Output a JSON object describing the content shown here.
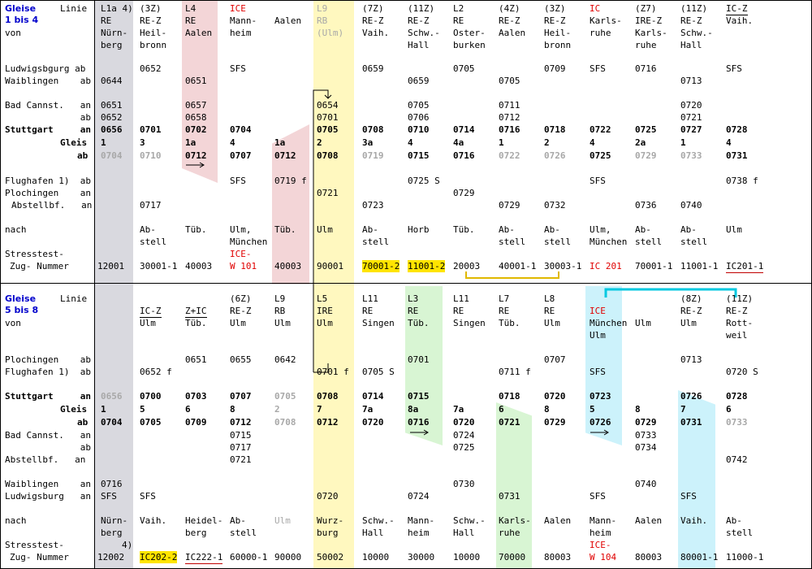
{
  "colors": {
    "gray": "#d9d9df",
    "pink": "#f3d5d7",
    "yellow": "#fff8bf",
    "green": "#d8f5d3",
    "cyan": "#ccf2fb",
    "teal": "#00c8e0",
    "gold": "#e0b800",
    "red": "#e00000",
    "blue": "#0000cc"
  },
  "top": {
    "gleise_line1": "Gleise",
    "gleise_line2": "1 bis 4",
    "linie": "Linie",
    "von": "von",
    "stations": [
      "Ludwigsbgurg ab",
      "Waiblingen    ab",
      "Bad Cannst.   an",
      "              ab",
      "Stuttgart     an",
      "Gleis",
      "ab",
      "Flughafen 1)  ab",
      "Plochingen    an",
      "Abstellbf.   an",
      "nach",
      "Stresstest-",
      "Zug- Nummer"
    ],
    "columns": [
      {
        "head": [
          "L1a 4)",
          "RE",
          "Nürn-",
          "berg"
        ],
        "deps": [
          "",
          "0644",
          "0651",
          "0652"
        ],
        "stgt_an": "0656",
        "gleis": "1",
        "stgt_ab": "0704",
        "lower": [
          "",
          "",
          ""
        ],
        "nach": [
          "",
          ""
        ],
        "num": "12001"
      },
      {
        "head": [
          "(3Z)",
          "RE-Z",
          "Heil-",
          "bronn"
        ],
        "deps": [
          "0652",
          "",
          "",
          ""
        ],
        "stgt_an": "0701",
        "gleis": "3",
        "stgt_ab": "0710",
        "lower": [
          "",
          "",
          "0717"
        ],
        "nach": [
          "Ab-",
          "stell"
        ],
        "num": "30001-1"
      },
      {
        "head": [
          "L4",
          "RE",
          "Aalen",
          ""
        ],
        "deps": [
          "",
          "0651",
          "0657",
          "0658"
        ],
        "stgt_an": "0702",
        "gleis": "1a",
        "stgt_ab": "0712",
        "lower": [
          "",
          "",
          ""
        ],
        "nach": [
          "Tüb.",
          ""
        ],
        "num": "40003"
      },
      {
        "head": [
          "ICE",
          "Mann-",
          "heim",
          ""
        ],
        "deps": [
          "SFS",
          "",
          "",
          ""
        ],
        "stgt_an": "0704",
        "gleis": "4",
        "stgt_ab": "0707",
        "lower": [
          "SFS",
          "",
          ""
        ],
        "nach": [
          "Ulm,",
          "München"
        ],
        "num": "ICE-",
        "num2": "W 101"
      },
      {
        "head": [
          "",
          "Aalen",
          "",
          ""
        ],
        "deps": [
          "",
          "",
          "",
          ""
        ],
        "stgt_an": "",
        "gleis": "1a",
        "stgt_ab": "0712",
        "lower": [
          "0719 f",
          "",
          ""
        ],
        "nach": [
          "Tüb.",
          ""
        ],
        "num": "40003"
      },
      {
        "head": [
          "L9",
          "RB",
          "(Ulm)",
          ""
        ],
        "deps": [
          "",
          "",
          "0654",
          "0701"
        ],
        "stgt_an": "0705",
        "gleis": "2",
        "stgt_ab": "0708",
        "lower": [
          "",
          "0721",
          ""
        ],
        "nach": [
          "Ulm",
          ""
        ],
        "num": "90001"
      },
      {
        "head": [
          "(7Z)",
          "RE-Z",
          "Vaih.",
          ""
        ],
        "deps": [
          "0659",
          "",
          "",
          ""
        ],
        "stgt_an": "0708",
        "gleis": "3a",
        "stgt_ab": "0719",
        "lower": [
          "",
          "",
          "0723"
        ],
        "nach": [
          "Ab-",
          "stell"
        ],
        "num": "70001-2"
      },
      {
        "head": [
          "(11Z)",
          "RE-Z",
          "Schw.-",
          "Hall"
        ],
        "deps": [
          "",
          "0659",
          "0705",
          "0706"
        ],
        "stgt_an": "0710",
        "gleis": "4",
        "stgt_ab": "0715",
        "lower": [
          "0725 S",
          "",
          ""
        ],
        "nach": [
          "Horb",
          ""
        ],
        "num": "11001-2"
      },
      {
        "head": [
          "L2",
          "RE",
          "Oster-",
          "burken"
        ],
        "deps": [
          "0705",
          "",
          "",
          ""
        ],
        "stgt_an": "0714",
        "gleis": "4a",
        "stgt_ab": "0716",
        "lower": [
          "",
          "0729",
          ""
        ],
        "nach": [
          "Tüb.",
          ""
        ],
        "num": "20003"
      },
      {
        "head": [
          "(4Z)",
          "RE-Z",
          "Aalen",
          ""
        ],
        "deps": [
          "",
          "0705",
          "0711",
          "0712"
        ],
        "stgt_an": "0716",
        "gleis": "1",
        "stgt_ab": "0722",
        "lower": [
          "",
          "",
          "0729"
        ],
        "nach": [
          "Ab-",
          "stell"
        ],
        "num": "40001-1"
      },
      {
        "head": [
          "(3Z)",
          "RE-Z",
          "Heil-",
          "bronn"
        ],
        "deps": [
          "0709",
          "",
          "",
          ""
        ],
        "stgt_an": "0718",
        "gleis": "2",
        "stgt_ab": "0726",
        "lower": [
          "",
          "",
          "0732"
        ],
        "nach": [
          "Ab-",
          "stell"
        ],
        "num": "30003-1"
      },
      {
        "head": [
          "IC",
          "Karls-",
          "ruhe",
          ""
        ],
        "deps": [
          "SFS",
          "",
          "",
          ""
        ],
        "stgt_an": "0722",
        "gleis": "4",
        "stgt_ab": "0725",
        "lower": [
          "SFS",
          "",
          ""
        ],
        "nach": [
          "Ulm,",
          "München"
        ],
        "num": "IC 201"
      },
      {
        "head": [
          "(Z7)",
          "IRE-Z",
          "Karls-",
          "ruhe"
        ],
        "deps": [
          "0716",
          "",
          "",
          ""
        ],
        "stgt_an": "0725",
        "gleis": "2a",
        "stgt_ab": "0729",
        "lower": [
          "",
          "",
          "0736"
        ],
        "nach": [
          "Ab-",
          "stell"
        ],
        "num": "70001-1"
      },
      {
        "head": [
          "(11Z)",
          "RE-Z",
          "Schw.-",
          "Hall"
        ],
        "deps": [
          "",
          "0713",
          "0720",
          "0721"
        ],
        "stgt_an": "0727",
        "gleis": "1",
        "stgt_ab": "0733",
        "lower": [
          "",
          "",
          "0740"
        ],
        "nach": [
          "Ab-",
          "stell"
        ],
        "num": "11001-1"
      },
      {
        "head": [
          "IC-Z",
          "Vaih.",
          "",
          ""
        ],
        "deps": [
          "SFS",
          "",
          "",
          ""
        ],
        "stgt_an": "0728",
        "gleis": "4",
        "stgt_ab": "0731",
        "lower": [
          "0738 f",
          "",
          ""
        ],
        "nach": [
          "Ulm",
          ""
        ],
        "num": "IC201-1"
      }
    ]
  },
  "bottom": {
    "gleise_line1": "Gleise",
    "gleise_line2": "5 bis 8",
    "linie": "Linie",
    "von": "von",
    "stations": [
      "Plochingen    ab",
      "Flughafen 1)  ab",
      "Stuttgart     an",
      "Gleis",
      "ab",
      "Bad Cannst.   an",
      "              ab",
      "Abstellbf.   an",
      "Waiblingen    an",
      "Ludwigsburg   an",
      "nach",
      "Stresstest-",
      "Zug- Nummer"
    ],
    "columns": [
      {
        "head": [
          "",
          "",
          "",
          ""
        ],
        "deps": [
          "",
          ""
        ],
        "stgt_an": "0656",
        "gleis": "1",
        "stgt_ab": "0704",
        "lower": [
          "",
          "",
          "",
          "",
          "0716",
          "SFS"
        ],
        "nach": [
          "Nürn-",
          "berg"
        ],
        "num": "12002",
        "note": "4)"
      },
      {
        "head": [
          "",
          "IC-Z",
          "Ulm",
          ""
        ],
        "deps": [
          "",
          "0652 f"
        ],
        "stgt_an": "0700",
        "gleis": "5",
        "stgt_ab": "0705",
        "lower": [
          "",
          "",
          "",
          "",
          "",
          "SFS"
        ],
        "nach": [
          "Vaih.",
          ""
        ],
        "num": "IC202-2"
      },
      {
        "head": [
          "",
          "Z+IC",
          "Tüb.",
          ""
        ],
        "deps": [
          "0651",
          ""
        ],
        "stgt_an": "0703",
        "gleis": "6",
        "stgt_ab": "0709",
        "lower": [
          "",
          "",
          "",
          "",
          "",
          ""
        ],
        "nach": [
          "Heidel-",
          "berg"
        ],
        "num": "IC222-1"
      },
      {
        "head": [
          "(6Z)",
          "RE-Z",
          "Ulm",
          ""
        ],
        "deps": [
          "0655",
          ""
        ],
        "stgt_an": "0707",
        "gleis": "8",
        "stgt_ab": "0712",
        "lower": [
          "0715",
          "0717",
          "0721",
          "",
          "",
          ""
        ],
        "nach": [
          "Ab-",
          "stell"
        ],
        "num": "60000-1"
      },
      {
        "head": [
          "L9",
          "RB",
          "Ulm",
          ""
        ],
        "deps": [
          "0642",
          ""
        ],
        "stgt_an": "0705",
        "gleis": "2",
        "stgt_ab": "0708",
        "lower": [
          "",
          "",
          "",
          "",
          "",
          ""
        ],
        "nach": [
          "Ulm",
          ""
        ],
        "num": "90000"
      },
      {
        "head": [
          "L5",
          "IRE",
          "Ulm",
          ""
        ],
        "deps": [
          "",
          "0701 f"
        ],
        "stgt_an": "0708",
        "gleis": "7",
        "stgt_ab": "0712",
        "lower": [
          "",
          "",
          "",
          "",
          "",
          "0720"
        ],
        "nach": [
          "Wurz-",
          "burg"
        ],
        "num": "50002"
      },
      {
        "head": [
          "L11",
          "RE",
          "Singen",
          ""
        ],
        "deps": [
          "",
          "0705 S"
        ],
        "stgt_an": "0714",
        "gleis": "7a",
        "stgt_ab": "0720",
        "lower": [
          "",
          "",
          "",
          "",
          "",
          ""
        ],
        "nach": [
          "Schw.-",
          "Hall"
        ],
        "num": "10000"
      },
      {
        "head": [
          "L3",
          "RE",
          "Tüb.",
          ""
        ],
        "deps": [
          "0701",
          ""
        ],
        "stgt_an": "0715",
        "gleis": "8a",
        "stgt_ab": "0716",
        "lower": [
          "",
          "",
          "",
          "",
          "",
          "0724"
        ],
        "nach": [
          "Mann-",
          "heim"
        ],
        "num": "30000"
      },
      {
        "head": [
          "L11",
          "RE",
          "Singen",
          ""
        ],
        "deps": [
          "",
          ""
        ],
        "stgt_an": "",
        "gleis": "7a",
        "stgt_ab": "0720",
        "lower": [
          "0724",
          "0725",
          "",
          "",
          "0730",
          ""
        ],
        "nach": [
          "Schw.-",
          "Hall"
        ],
        "num": "10000"
      },
      {
        "head": [
          "L7",
          "RE",
          "Tüb.",
          ""
        ],
        "deps": [
          "",
          "0711 f"
        ],
        "stgt_an": "0718",
        "gleis": "6",
        "stgt_ab": "0721",
        "lower": [
          "",
          "",
          "",
          "",
          "",
          "0731"
        ],
        "nach": [
          "Karls-",
          "ruhe"
        ],
        "num": "70000"
      },
      {
        "head": [
          "L8",
          "RE",
          "Ulm",
          ""
        ],
        "deps": [
          "0707",
          ""
        ],
        "stgt_an": "0720",
        "gleis": "8",
        "stgt_ab": "0729",
        "lower": [
          "",
          "",
          "",
          "",
          "",
          ""
        ],
        "nach": [
          "Aalen",
          ""
        ],
        "num": "80003"
      },
      {
        "head": [
          "",
          "ICE",
          "München",
          "Ulm"
        ],
        "deps": [
          "",
          "SFS"
        ],
        "stgt_an": "0723",
        "gleis": "5",
        "stgt_ab": "0726",
        "lower": [
          "",
          "",
          "",
          "",
          "",
          "SFS"
        ],
        "nach": [
          "Mann-",
          "heim"
        ],
        "num": "ICE-",
        "num2": "W 104"
      },
      {
        "head": [
          "",
          "",
          "Ulm",
          ""
        ],
        "deps": [
          "",
          ""
        ],
        "stgt_an": "",
        "gleis": "8",
        "stgt_ab": "0729",
        "lower": [
          "0733",
          "0734",
          "",
          "",
          "0740",
          ""
        ],
        "nach": [
          "Aalen",
          ""
        ],
        "num": "80003"
      },
      {
        "head": [
          "(8Z)",
          "RE-Z",
          "Ulm",
          ""
        ],
        "deps": [
          "0713",
          ""
        ],
        "stgt_an": "0726",
        "gleis": "7",
        "stgt_ab": "0731",
        "lower": [
          "",
          "",
          "",
          "",
          "",
          "SFS"
        ],
        "nach": [
          "Vaih.",
          ""
        ],
        "num": "80001-1"
      },
      {
        "head": [
          "(11Z)",
          "RE-Z",
          "Rott-",
          "weil"
        ],
        "deps": [
          "",
          "0720 S"
        ],
        "stgt_an": "0728",
        "gleis": "6",
        "stgt_ab": "0733",
        "lower": [
          "",
          "",
          "0742",
          "",
          "",
          ""
        ],
        "nach": [
          "Ab-",
          "stell"
        ],
        "num": "11000-1"
      }
    ]
  }
}
